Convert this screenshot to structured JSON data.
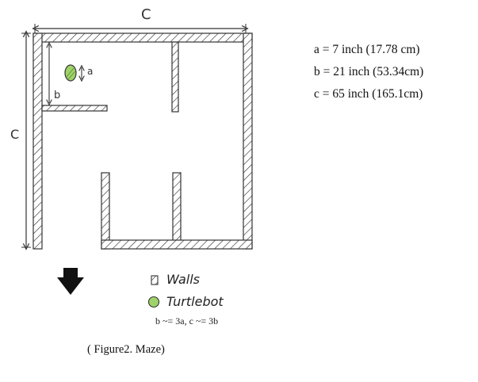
{
  "dimensions": {
    "a": "a = 7 inch (17.78 cm)",
    "b": "b = 21 inch (53.34cm)",
    "c": "c = 65 inch (165.1cm)"
  },
  "labels": {
    "top_c": "C",
    "left_c": "C",
    "a": "a",
    "b": "b"
  },
  "legend": {
    "walls": "Walls",
    "turtlebot": "Turtlebot",
    "ratio": "b ~= 3a, c ~= 3b"
  },
  "caption": "( Figure2. Maze)",
  "colors": {
    "turtlebot_fill": "#9fd36a",
    "wall_stroke": "#333333"
  },
  "icons": {
    "direction": "down-arrow-icon",
    "robot": "turtlebot-circle-icon",
    "wall": "hatched-wall-icon"
  }
}
